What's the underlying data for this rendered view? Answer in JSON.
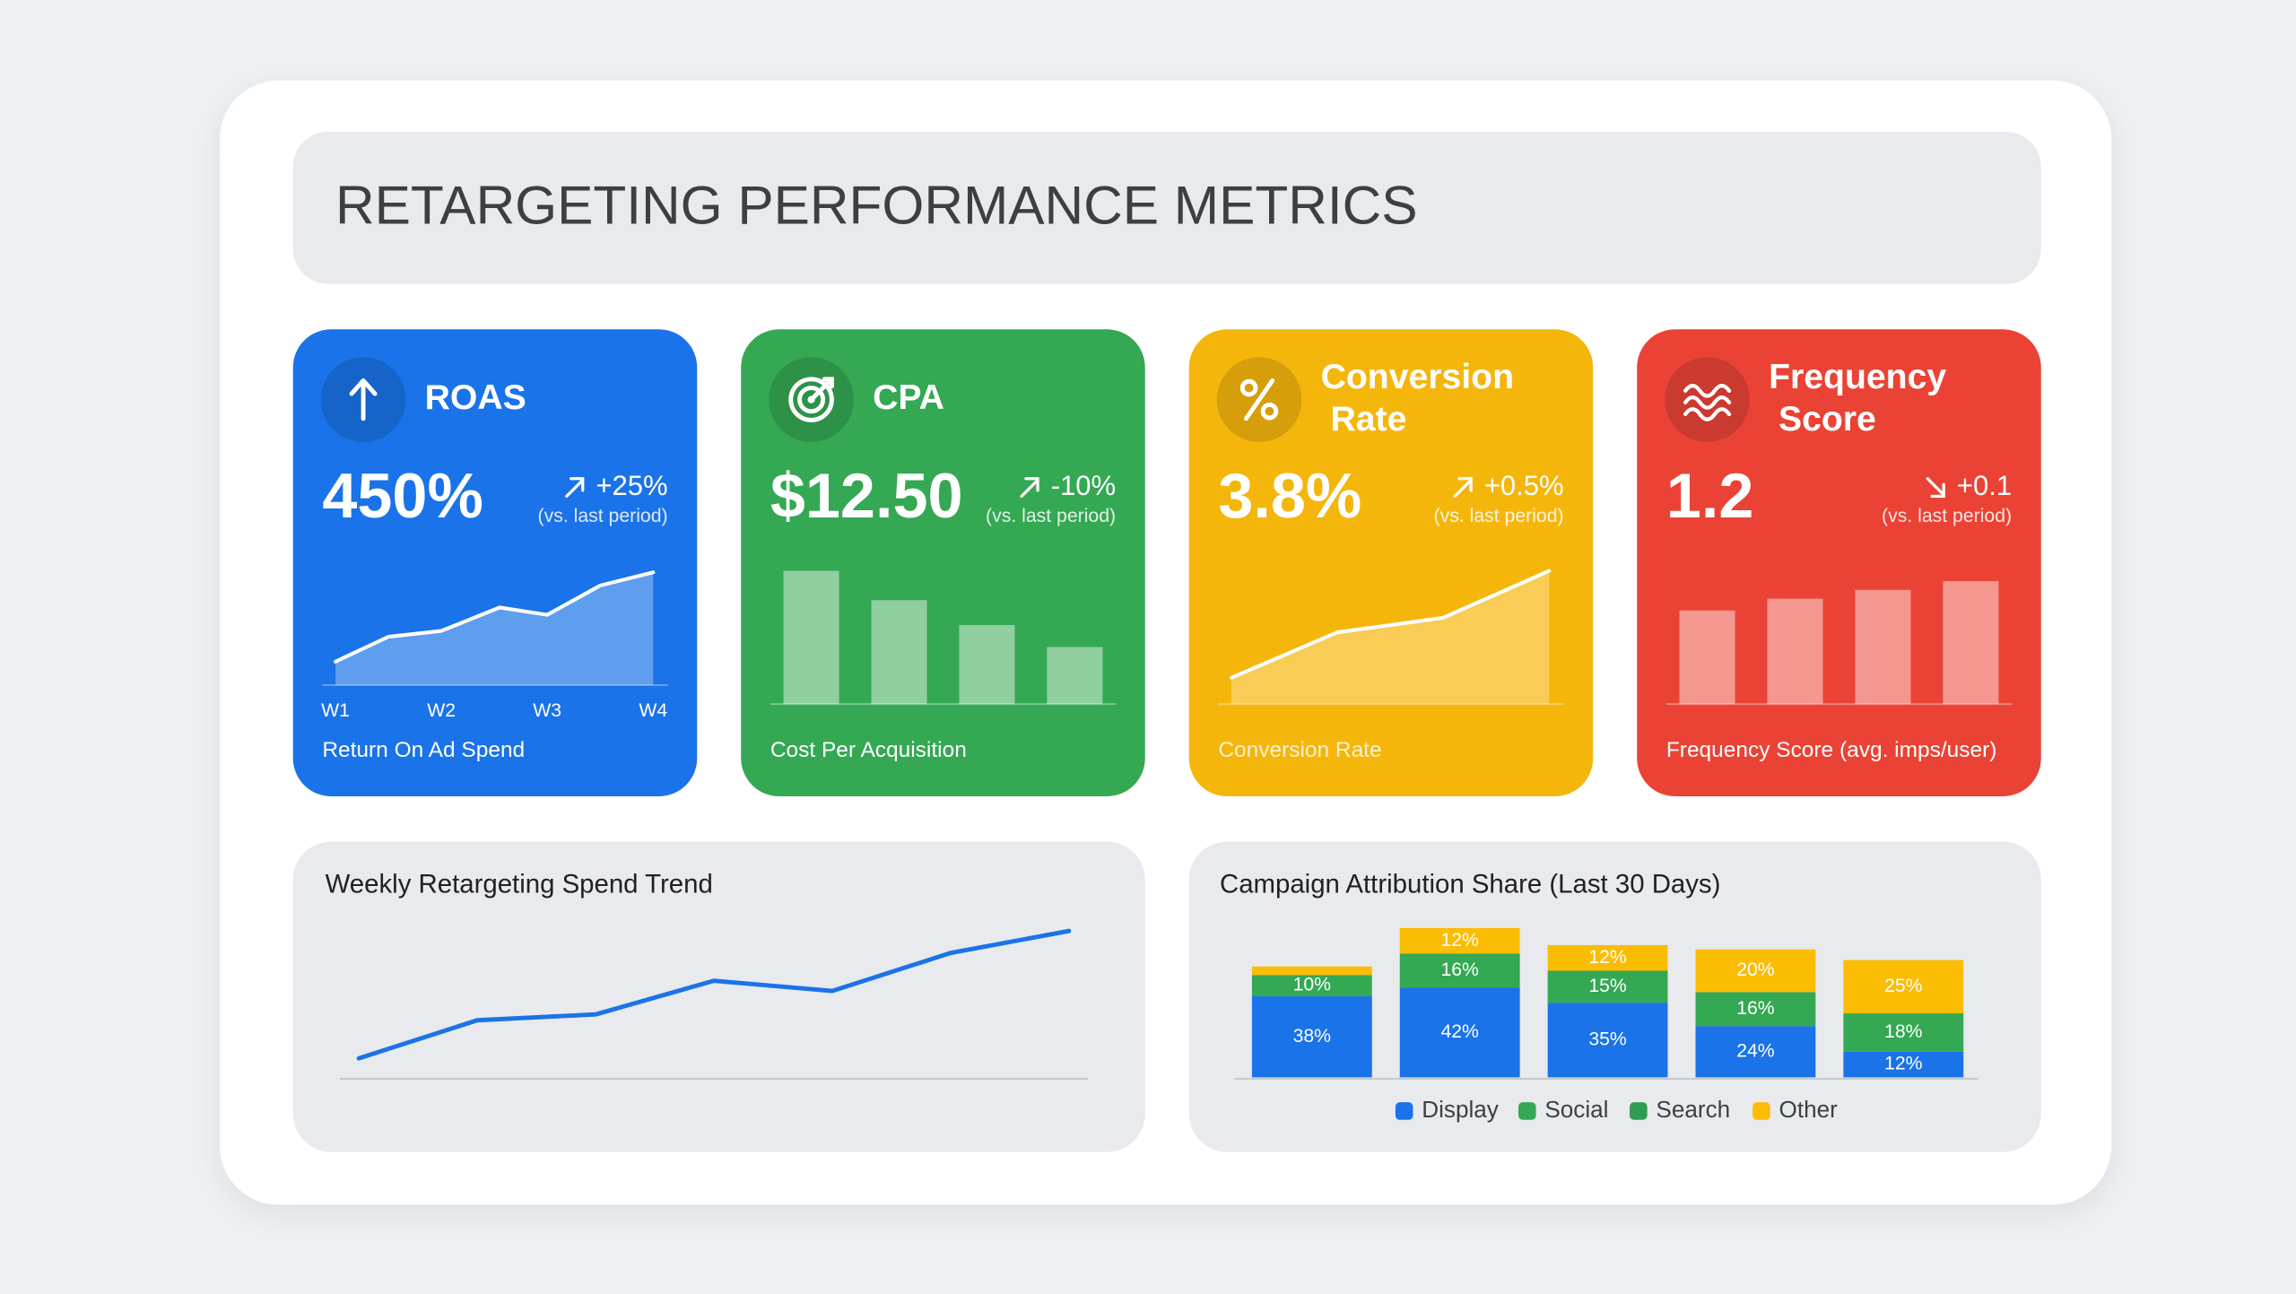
{
  "title": "RETARGETING PERFORMANCE METRICS",
  "cards": [
    {
      "title": "ROAS",
      "value": "450%",
      "change": "+25%",
      "change_note": "(vs. last period)",
      "caption": "Return On Ad Spend",
      "trend": "up",
      "color": "#1a73e8"
    },
    {
      "title": "CPA",
      "value": "$12.50",
      "change": "-10%",
      "change_note": "(vs. last period)",
      "caption": "Cost Per Acquisition",
      "trend": "up",
      "color": "#34a853"
    },
    {
      "title": "Conversion Rate",
      "value": "3.8%",
      "change": "+0.5%",
      "change_note": "(vs. last period)",
      "caption": "Conversion Rate",
      "trend": "up",
      "color": "#f5b60c"
    },
    {
      "title": "Frequency Score",
      "value": "1.2",
      "change": "+0.1",
      "change_note": "(vs. last period)",
      "caption": "Frequency Score (avg. imps/user)",
      "trend": "down",
      "color": "#ea4335"
    }
  ],
  "chart_data": [
    {
      "type": "line",
      "area": true,
      "color": "#ffffff",
      "x": [
        0,
        0.5,
        1,
        1.55,
        2,
        2.5,
        3
      ],
      "values": [
        16,
        33,
        37,
        53,
        48,
        68,
        77
      ],
      "xlim": [
        0,
        3
      ],
      "ylim": [
        0,
        80
      ],
      "xticks": [
        {
          "value": 0,
          "label": "W1"
        },
        {
          "value": 1,
          "label": "W2"
        },
        {
          "value": 2,
          "label": "W3"
        },
        {
          "value": 3,
          "label": "W4"
        }
      ]
    },
    {
      "type": "bar",
      "color": "#ffffff",
      "values": [
        91,
        71,
        54,
        39
      ],
      "ylim": [
        0,
        100
      ]
    },
    {
      "type": "line",
      "area": true,
      "color": "#ffffff",
      "values": [
        18,
        49,
        59,
        91
      ],
      "ylim": [
        0,
        100
      ]
    },
    {
      "type": "bar",
      "color": "#ffffff",
      "values": [
        64,
        72,
        78,
        84
      ],
      "ylim": [
        0,
        100
      ]
    },
    {
      "type": "line",
      "title": "Weekly Retargeting Spend Trend",
      "color": "#1a73e8",
      "categories": [
        null,
        null,
        null,
        null,
        null,
        null,
        null
      ],
      "values": [
        14,
        40,
        44,
        67,
        60,
        86,
        101
      ],
      "ylim": [
        0,
        110
      ]
    },
    {
      "type": "stacked_bar",
      "title": "Campaign Attribution Share (Last 30 Days)",
      "categories": [
        null,
        null,
        null,
        null,
        null
      ],
      "ylim": [
        0,
        70
      ],
      "series": [
        {
          "name": "Display",
          "color": "#1a73e8",
          "values": [
            38,
            42,
            35,
            24,
            12
          ],
          "value_labels": [
            "38%",
            "42%",
            "35%",
            "24%",
            "12%"
          ]
        },
        {
          "name": "Social",
          "color": "#34a853",
          "values": [
            10,
            16,
            15,
            16,
            18
          ],
          "value_labels": [
            "10%",
            "16%",
            "15%",
            "16%",
            "18%"
          ]
        },
        {
          "name": "Search",
          "color": "#2e9d52",
          "values": [
            null,
            null,
            null,
            null,
            null
          ],
          "value_labels": [
            null,
            null,
            null,
            null,
            null
          ]
        },
        {
          "name": "Other",
          "color": "#fbbc04",
          "values": [
            4,
            12,
            12,
            20,
            25
          ],
          "value_labels": [
            null,
            "12%",
            "12%",
            "20%",
            "25%"
          ]
        }
      ]
    }
  ]
}
